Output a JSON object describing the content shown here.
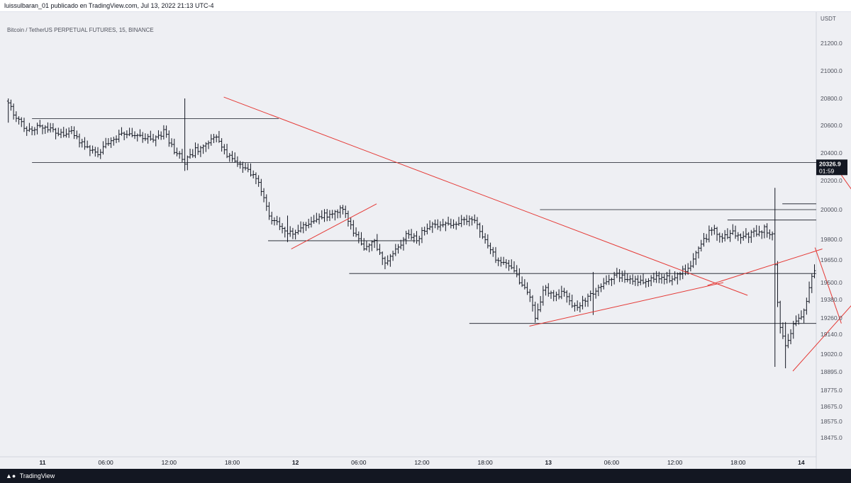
{
  "header": {
    "title": "luissulbaran_01 publicado en TradingView.com, Jul 13, 2022 21:13 UTC-4"
  },
  "symbol": {
    "label": "Bitcoin / TetherUS PERPETUAL FUTURES, 15, BINANCE"
  },
  "footer": {
    "brand": "TradingView",
    "logo_icon": "tradingview-logo-icon"
  },
  "colors": {
    "background": "#eeeff3",
    "candle": "#131722",
    "trendline": "#e53935",
    "level": "#131722",
    "last_price_bg": "#131722"
  },
  "chart_data": {
    "type": "bar",
    "y_unit": "USDT",
    "ylim": [
      18400,
      21300
    ],
    "grid": false,
    "y_ticks": [
      {
        "label": "21200.0",
        "value": 21200
      },
      {
        "label": "21000.0",
        "value": 21000
      },
      {
        "label": "20800.0",
        "value": 20800
      },
      {
        "label": "20600.0",
        "value": 20600
      },
      {
        "label": "20400.0",
        "value": 20400
      },
      {
        "label": "20200.0",
        "value": 20200
      },
      {
        "label": "20000.0",
        "value": 20000
      },
      {
        "label": "19800.0",
        "value": 19800
      },
      {
        "label": "19650.0",
        "value": 19650
      },
      {
        "label": "19500.0",
        "value": 19500
      },
      {
        "label": "19380.0",
        "value": 19380
      },
      {
        "label": "19260.0",
        "value": 19260
      },
      {
        "label": "19140.0",
        "value": 19140
      },
      {
        "label": "19020.0",
        "value": 19020
      },
      {
        "label": "18895.0",
        "value": 18895
      },
      {
        "label": "18775.0",
        "value": 18775
      },
      {
        "label": "18675.0",
        "value": 18675
      },
      {
        "label": "18575.0",
        "value": 18575
      },
      {
        "label": "18475.0",
        "value": 18475
      }
    ],
    "x_ticks": [
      {
        "label": "11",
        "hour": 0,
        "bold": true
      },
      {
        "label": "06:00",
        "hour": 6
      },
      {
        "label": "12:00",
        "hour": 12
      },
      {
        "label": "18:00",
        "hour": 18
      },
      {
        "label": "12",
        "hour": 24,
        "bold": true
      },
      {
        "label": "06:00",
        "hour": 30
      },
      {
        "label": "12:00",
        "hour": 36
      },
      {
        "label": "18:00",
        "hour": 42
      },
      {
        "label": "13",
        "hour": 48,
        "bold": true
      },
      {
        "label": "06:00",
        "hour": 54
      },
      {
        "label": "12:00",
        "hour": 60
      },
      {
        "label": "18:00",
        "hour": 66
      },
      {
        "label": "14",
        "hour": 72,
        "bold": true
      }
    ],
    "last_price": {
      "value": 20326.9,
      "label": "20326.9",
      "countdown": "01:59"
    },
    "path": [
      [
        -3.2,
        20780
      ],
      [
        -2.5,
        20650
      ],
      [
        -1.5,
        20570
      ],
      [
        0,
        20600
      ],
      [
        1.5,
        20530
      ],
      [
        2.5,
        20560
      ],
      [
        4,
        20450
      ],
      [
        5.2,
        20400
      ],
      [
        6.5,
        20500
      ],
      [
        8,
        20540
      ],
      [
        9.5,
        20520
      ],
      [
        10.5,
        20480
      ],
      [
        11.5,
        20550
      ],
      [
        12.5,
        20420
      ],
      [
        13.5,
        20330
      ],
      [
        14.5,
        20420
      ],
      [
        15.5,
        20460
      ],
      [
        16.5,
        20510
      ],
      [
        17.5,
        20380
      ],
      [
        19,
        20300
      ],
      [
        20.5,
        20200
      ],
      [
        21.5,
        19960
      ],
      [
        22.5,
        19880
      ],
      [
        23.5,
        19840
      ],
      [
        24.5,
        19880
      ],
      [
        25.5,
        19920
      ],
      [
        26.5,
        19950
      ],
      [
        27.5,
        19990
      ],
      [
        28.5,
        20000
      ],
      [
        29.5,
        19850
      ],
      [
        30.5,
        19720
      ],
      [
        31.5,
        19780
      ],
      [
        32.5,
        19640
      ],
      [
        33.5,
        19720
      ],
      [
        34.5,
        19820
      ],
      [
        35.5,
        19800
      ],
      [
        36.5,
        19880
      ],
      [
        38,
        19900
      ],
      [
        39,
        19890
      ],
      [
        40,
        19930
      ],
      [
        41,
        19910
      ],
      [
        42,
        19800
      ],
      [
        43,
        19660
      ],
      [
        44,
        19620
      ],
      [
        45,
        19540
      ],
      [
        46,
        19440
      ],
      [
        46.8,
        19260
      ],
      [
        47.6,
        19470
      ],
      [
        48.5,
        19400
      ],
      [
        49.5,
        19430
      ],
      [
        50.5,
        19330
      ],
      [
        51.5,
        19380
      ],
      [
        52.5,
        19440
      ],
      [
        53.5,
        19500
      ],
      [
        54.5,
        19550
      ],
      [
        55.5,
        19520
      ],
      [
        56.5,
        19500
      ],
      [
        57.5,
        19520
      ],
      [
        58.5,
        19540
      ],
      [
        59.5,
        19530
      ],
      [
        60.5,
        19560
      ],
      [
        61.5,
        19620
      ],
      [
        62.5,
        19760
      ],
      [
        63.5,
        19880
      ],
      [
        64.5,
        19820
      ],
      [
        65.5,
        19840
      ],
      [
        66.5,
        19810
      ],
      [
        67.5,
        19840
      ],
      [
        68.5,
        19870
      ],
      [
        69.3,
        19820
      ],
      [
        69.9,
        19220
      ],
      [
        70.6,
        19050
      ],
      [
        71.4,
        19240
      ],
      [
        72.3,
        19300
      ],
      [
        73,
        19560
      ],
      [
        73.8,
        19650
      ],
      [
        74.7,
        19380
      ],
      [
        75.6,
        19520
      ],
      [
        76.4,
        19880
      ],
      [
        77.2,
        19870
      ],
      [
        78.2,
        19780
      ],
      [
        79.2,
        19740
      ],
      [
        80.2,
        19660
      ],
      [
        81.2,
        19620
      ],
      [
        82.2,
        19750
      ],
      [
        83.2,
        19850
      ],
      [
        84.2,
        19930
      ],
      [
        85.2,
        19960
      ],
      [
        86,
        20240
      ],
      [
        86.8,
        20300
      ],
      [
        87.6,
        20250
      ],
      [
        88.4,
        20300
      ],
      [
        89,
        20330
      ]
    ],
    "levels": [
      {
        "value": 20650,
        "from": -1,
        "to": 22.4
      },
      {
        "value": 20330,
        "from": -1,
        "to": 88.5
      },
      {
        "value": 20040,
        "from": 70.2,
        "to": 89.2
      },
      {
        "value": 20000,
        "from": 47.2,
        "to": 89.2
      },
      {
        "value": 19930,
        "from": 65,
        "to": 89.2
      },
      {
        "value": 19790,
        "from": 21.4,
        "to": 35.4
      },
      {
        "value": 19560,
        "from": 29.1,
        "to": 89.2
      },
      {
        "value": 19220,
        "from": 40.5,
        "to": 89.2
      }
    ],
    "trendlines": [
      {
        "x1": 17.2,
        "y1": 20810,
        "x2": 66.9,
        "y2": 19410
      },
      {
        "x1": 23.6,
        "y1": 19730,
        "x2": 31.7,
        "y2": 20040
      },
      {
        "x1": 46.2,
        "y1": 19200,
        "x2": 64.6,
        "y2": 19500
      },
      {
        "x1": 63.1,
        "y1": 19480,
        "x2": 74,
        "y2": 19730
      },
      {
        "x1": 71.2,
        "y1": 18900,
        "x2": 89.3,
        "y2": 20370
      },
      {
        "x1": 73.3,
        "y1": 19740,
        "x2": 75.8,
        "y2": 19220
      },
      {
        "x1": 75.8,
        "y1": 20240,
        "x2": 82.4,
        "y2": 19560
      }
    ]
  }
}
